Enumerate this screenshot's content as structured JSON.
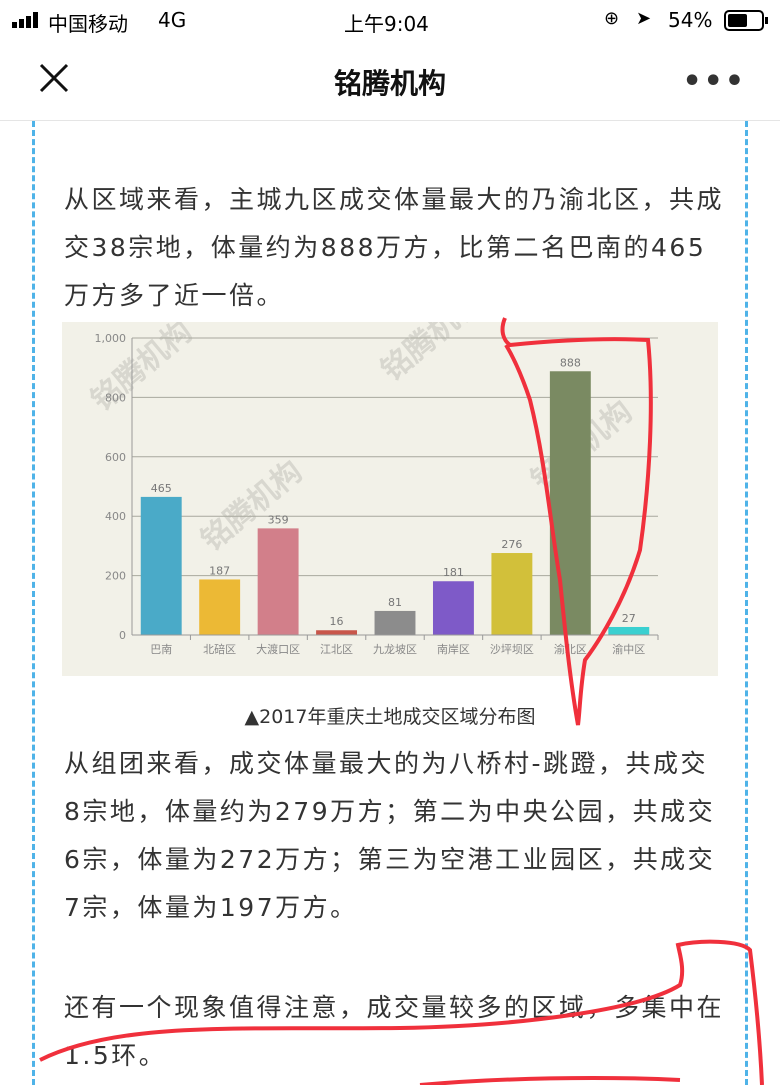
{
  "status_bar": {
    "carrier": "中国移动",
    "network": "4G",
    "time": "上午9:04",
    "battery": "54%"
  },
  "nav": {
    "title": "铭腾机构",
    "close_icon": "close-icon",
    "more_icon": "more-icon"
  },
  "article": {
    "para1": "从区域来看，主城九区成交体量最大的乃渝北区，共成交38宗地，体量约为888万方，比第二名巴南的465万方多了近一倍。",
    "caption": "▲2017年重庆土地成交区域分布图",
    "para2": "从组团来看，成交体量最大的为八桥村-跳蹬，共成交8宗地，体量约为279万方；第二为中央公园，共成交6宗，体量为272万方；第三为空港工业园区，共成交7宗，体量为197万方。",
    "para3": "还有一个现象值得注意，成交量较多的区域，多集中在1.5环。"
  },
  "chart_data": {
    "type": "bar",
    "categories": [
      "巴南",
      "北碚区",
      "大渡口区",
      "江北区",
      "九龙坡区",
      "南岸区",
      "沙坪坝区",
      "渝北区",
      "渝中区"
    ],
    "values": [
      465,
      187,
      359,
      16,
      81,
      181,
      276,
      888,
      27
    ],
    "colors": [
      "#4aaac8",
      "#ecb935",
      "#d27f8a",
      "#c8564a",
      "#8c8c8c",
      "#7e5ac8",
      "#d2c03a",
      "#7a8a62",
      "#3ad0d0"
    ],
    "yticks": [
      "0",
      "200",
      "400",
      "600",
      "800",
      "1,000"
    ],
    "ylim": [
      0,
      1000
    ],
    "grid": true,
    "watermark": "铭腾机构 MINGTENG AGENCY"
  },
  "colors": {
    "annotation": "#f0303c",
    "divider": "#4fb3e8"
  }
}
